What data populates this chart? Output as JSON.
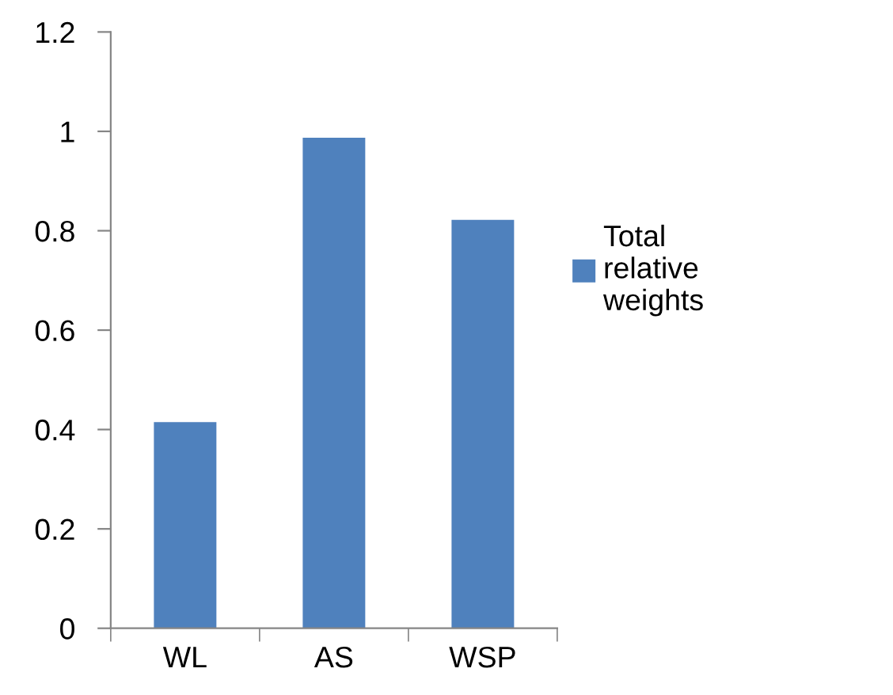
{
  "chart_data": {
    "type": "bar",
    "categories": [
      "WL",
      "AS",
      "WSP"
    ],
    "series": [
      {
        "name": "Total relative weights",
        "color": "#4f81bd",
        "values": [
          0.415,
          0.987,
          0.822
        ]
      }
    ],
    "ylim": [
      0,
      1.2
    ],
    "yticks": [
      0,
      0.2,
      0.4,
      0.6,
      0.8,
      1,
      1.2
    ],
    "grid": false,
    "legend": "right"
  }
}
